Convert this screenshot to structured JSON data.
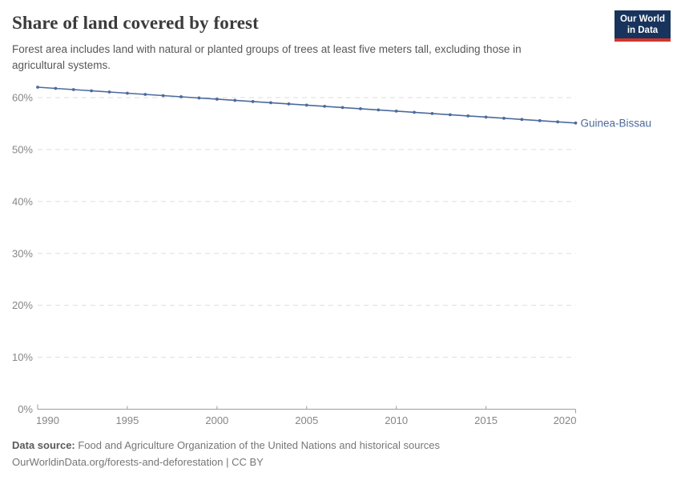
{
  "header": {
    "title": "Share of land covered by forest",
    "subtitle": "Forest area includes land with natural or planted groups of trees at least five meters tall, excluding those in agricultural systems."
  },
  "logo": {
    "line1": "Our World",
    "line2": "in Data",
    "bg_color": "#18345d",
    "bar_color": "#d2352b"
  },
  "chart_data": {
    "type": "line",
    "title": "Share of land covered by forest",
    "x": [
      1990,
      1991,
      1992,
      1993,
      1994,
      1995,
      1996,
      1997,
      1998,
      1999,
      2000,
      2001,
      2002,
      2003,
      2004,
      2005,
      2006,
      2007,
      2008,
      2009,
      2010,
      2011,
      2012,
      2013,
      2014,
      2015,
      2016,
      2017,
      2018,
      2019,
      2020
    ],
    "series": [
      {
        "name": "Guinea-Bissau",
        "color": "#4C6A9C",
        "values": [
          62.0,
          61.77,
          61.54,
          61.31,
          61.08,
          60.85,
          60.62,
          60.39,
          60.16,
          59.93,
          59.7,
          59.47,
          59.24,
          59.01,
          58.78,
          58.55,
          58.32,
          58.09,
          57.86,
          57.63,
          57.4,
          57.17,
          56.94,
          56.71,
          56.48,
          56.25,
          56.02,
          55.79,
          55.56,
          55.33,
          55.1
        ]
      }
    ],
    "xlabel": "",
    "ylabel": "",
    "xlim": [
      1990,
      2020
    ],
    "ylim": [
      0,
      62
    ],
    "xticks": [
      1990,
      1995,
      2000,
      2005,
      2010,
      2015,
      2020
    ],
    "yticks": [
      0,
      10,
      20,
      30,
      40,
      50,
      60
    ],
    "ytick_suffix": "%",
    "grid": "horizontal dashed",
    "legend": "end-of-line label",
    "markers": true
  },
  "footer": {
    "datasource_label": "Data source:",
    "datasource_text": " Food and Agriculture Organization of the United Nations and historical sources",
    "link": "OurWorldinData.org/forests-and-deforestation",
    "license_suffix": " | CC BY"
  }
}
